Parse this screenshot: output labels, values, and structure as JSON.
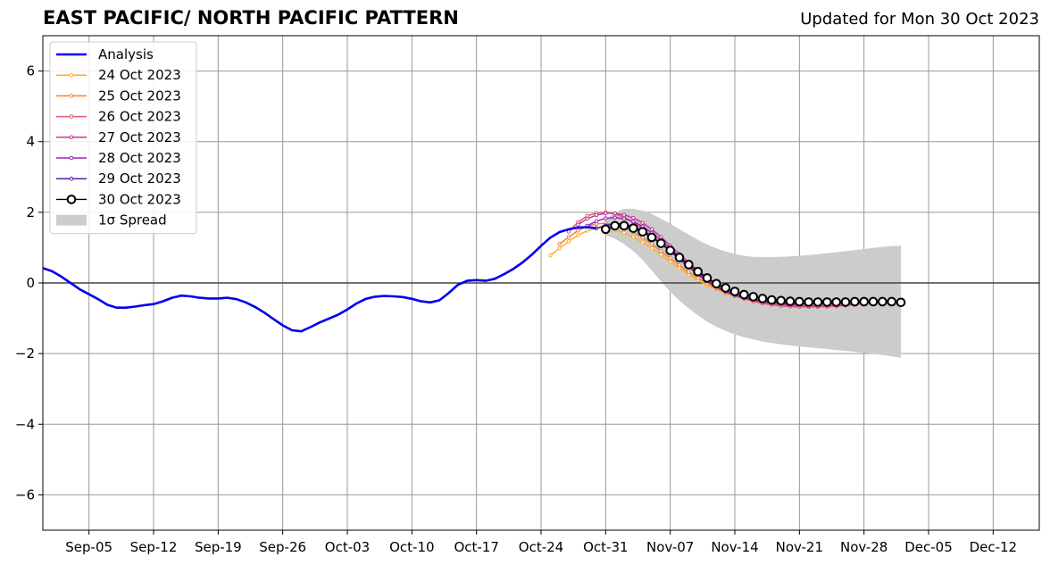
{
  "header": {
    "title": "EAST PACIFIC/ NORTH PACIFIC PATTERN",
    "updated": "Updated for Mon 30 Oct 2023"
  },
  "chart_data": {
    "type": "line",
    "title": "EAST PACIFIC/ NORTH PACIFIC PATTERN",
    "subtitle": "Updated for Mon 30 Oct 2023",
    "xlabel": "",
    "ylabel": "",
    "xlim": [
      "2023-08-31",
      "2023-12-17"
    ],
    "ylim": [
      -7,
      7
    ],
    "grid": true,
    "legend_position": "top-left",
    "x_ticks": [
      "Sep-05",
      "Sep-12",
      "Sep-19",
      "Sep-26",
      "Oct-03",
      "Oct-10",
      "Oct-17",
      "Oct-24",
      "Oct-31",
      "Nov-07",
      "Nov-14",
      "Nov-21",
      "Nov-28",
      "Dec-05",
      "Dec-12"
    ],
    "x_tick_dates": [
      "2023-09-05",
      "2023-09-12",
      "2023-09-19",
      "2023-09-26",
      "2023-10-03",
      "2023-10-10",
      "2023-10-17",
      "2023-10-24",
      "2023-10-31",
      "2023-11-07",
      "2023-11-14",
      "2023-11-21",
      "2023-11-28",
      "2023-12-05",
      "2023-12-12"
    ],
    "y_ticks": [
      6,
      4,
      2,
      0,
      -2,
      -4,
      -6
    ],
    "y_tick_labels": [
      "6",
      "4",
      "2",
      "0",
      "−2",
      "−4",
      "−6"
    ],
    "colors": {
      "analysis": "#0000ee",
      "spread": "#cccccc",
      "grid": "#999999",
      "zero_line": "#444444"
    },
    "analysis": {
      "name": "Analysis",
      "color": "#0000ee",
      "x": [
        "2023-08-31",
        "2023-09-01",
        "2023-09-02",
        "2023-09-03",
        "2023-09-04",
        "2023-09-05",
        "2023-09-06",
        "2023-09-07",
        "2023-09-08",
        "2023-09-09",
        "2023-09-10",
        "2023-09-11",
        "2023-09-12",
        "2023-09-13",
        "2023-09-14",
        "2023-09-15",
        "2023-09-16",
        "2023-09-17",
        "2023-09-18",
        "2023-09-19",
        "2023-09-20",
        "2023-09-21",
        "2023-09-22",
        "2023-09-23",
        "2023-09-24",
        "2023-09-25",
        "2023-09-26",
        "2023-09-27",
        "2023-09-28",
        "2023-09-29",
        "2023-09-30",
        "2023-10-01",
        "2023-10-02",
        "2023-10-03",
        "2023-10-04",
        "2023-10-05",
        "2023-10-06",
        "2023-10-07",
        "2023-10-08",
        "2023-10-09",
        "2023-10-10",
        "2023-10-11",
        "2023-10-12",
        "2023-10-13",
        "2023-10-14",
        "2023-10-15",
        "2023-10-16",
        "2023-10-17",
        "2023-10-18",
        "2023-10-19",
        "2023-10-20",
        "2023-10-21",
        "2023-10-22",
        "2023-10-23",
        "2023-10-24",
        "2023-10-25",
        "2023-10-26",
        "2023-10-27",
        "2023-10-28",
        "2023-10-29",
        "2023-10-30"
      ],
      "y": [
        0.42,
        0.33,
        0.18,
        0.0,
        -0.18,
        -0.32,
        -0.46,
        -0.62,
        -0.7,
        -0.7,
        -0.67,
        -0.63,
        -0.6,
        -0.52,
        -0.42,
        -0.36,
        -0.38,
        -0.42,
        -0.44,
        -0.44,
        -0.42,
        -0.46,
        -0.55,
        -0.68,
        -0.84,
        -1.02,
        -1.2,
        -1.34,
        -1.37,
        -1.25,
        -1.12,
        -1.01,
        -0.9,
        -0.75,
        -0.58,
        -0.45,
        -0.39,
        -0.37,
        -0.38,
        -0.4,
        -0.45,
        -0.52,
        -0.55,
        -0.49,
        -0.28,
        -0.05,
        0.06,
        0.08,
        0.06,
        0.12,
        0.25,
        0.4,
        0.58,
        0.8,
        1.05,
        1.28,
        1.44,
        1.52,
        1.57,
        1.58,
        1.55
      ]
    },
    "spread": {
      "name": "1σ Spread",
      "x": [
        "2023-10-31",
        "2023-11-01",
        "2023-11-02",
        "2023-11-03",
        "2023-11-04",
        "2023-11-05",
        "2023-11-06",
        "2023-11-07",
        "2023-11-08",
        "2023-11-09",
        "2023-11-10",
        "2023-11-11",
        "2023-11-12",
        "2023-11-13",
        "2023-11-14",
        "2023-11-15",
        "2023-11-16",
        "2023-11-17",
        "2023-11-18",
        "2023-11-19",
        "2023-11-20",
        "2023-11-21",
        "2023-11-22",
        "2023-11-23",
        "2023-11-24",
        "2023-11-25",
        "2023-11-26",
        "2023-11-27",
        "2023-11-28",
        "2023-11-29",
        "2023-11-30",
        "2023-12-01",
        "2023-12-02"
      ],
      "upper": [
        1.8,
        2.0,
        2.1,
        2.1,
        2.05,
        1.95,
        1.82,
        1.68,
        1.52,
        1.37,
        1.22,
        1.09,
        0.98,
        0.89,
        0.82,
        0.77,
        0.74,
        0.73,
        0.73,
        0.74,
        0.75,
        0.77,
        0.79,
        0.81,
        0.84,
        0.87,
        0.9,
        0.93,
        0.96,
        0.99,
        1.02,
        1.04,
        1.06
      ],
      "lower": [
        1.35,
        1.25,
        1.1,
        0.9,
        0.65,
        0.35,
        0.05,
        -0.25,
        -0.5,
        -0.72,
        -0.92,
        -1.1,
        -1.24,
        -1.36,
        -1.46,
        -1.54,
        -1.6,
        -1.66,
        -1.7,
        -1.74,
        -1.77,
        -1.8,
        -1.82,
        -1.85,
        -1.87,
        -1.9,
        -1.92,
        -1.95,
        -1.98,
        -2.01,
        -2.04,
        -2.08,
        -2.12
      ]
    },
    "forecasts": [
      {
        "name": "24 Oct 2023",
        "color": "#ffb020",
        "x": [
          "2023-10-25",
          "2023-10-26",
          "2023-10-27",
          "2023-10-28",
          "2023-10-29",
          "2023-10-30",
          "2023-10-31",
          "2023-11-01",
          "2023-11-02",
          "2023-11-03",
          "2023-11-04",
          "2023-11-05",
          "2023-11-06",
          "2023-11-07",
          "2023-11-08",
          "2023-11-09",
          "2023-11-10",
          "2023-11-11",
          "2023-11-12",
          "2023-11-13",
          "2023-11-14",
          "2023-11-15",
          "2023-11-16",
          "2023-11-17",
          "2023-11-18",
          "2023-11-19",
          "2023-11-20",
          "2023-11-21",
          "2023-11-22",
          "2023-11-23",
          "2023-11-24",
          "2023-11-25"
        ],
        "y": [
          0.78,
          0.98,
          1.18,
          1.35,
          1.48,
          1.55,
          1.55,
          1.5,
          1.42,
          1.3,
          1.15,
          0.98,
          0.8,
          0.6,
          0.42,
          0.24,
          0.08,
          -0.06,
          -0.18,
          -0.3,
          -0.38,
          -0.45,
          -0.5,
          -0.55,
          -0.58,
          -0.61,
          -0.63,
          -0.64,
          -0.65,
          -0.65,
          -0.64,
          -0.63
        ]
      },
      {
        "name": "25 Oct 2023",
        "color": "#f08040",
        "x": [
          "2023-10-26",
          "2023-10-27",
          "2023-10-28",
          "2023-10-29",
          "2023-10-30",
          "2023-10-31",
          "2023-11-01",
          "2023-11-02",
          "2023-11-03",
          "2023-11-04",
          "2023-11-05",
          "2023-11-06",
          "2023-11-07",
          "2023-11-08",
          "2023-11-09",
          "2023-11-10",
          "2023-11-11",
          "2023-11-12",
          "2023-11-13",
          "2023-11-14",
          "2023-11-15",
          "2023-11-16",
          "2023-11-17",
          "2023-11-18",
          "2023-11-19",
          "2023-11-20",
          "2023-11-21",
          "2023-11-22",
          "2023-11-23",
          "2023-11-24",
          "2023-11-25",
          "2023-11-26"
        ],
        "y": [
          1.1,
          1.3,
          1.48,
          1.6,
          1.67,
          1.69,
          1.65,
          1.56,
          1.44,
          1.28,
          1.1,
          0.9,
          0.7,
          0.5,
          0.31,
          0.14,
          -0.01,
          -0.15,
          -0.27,
          -0.37,
          -0.45,
          -0.52,
          -0.57,
          -0.61,
          -0.64,
          -0.66,
          -0.67,
          -0.68,
          -0.68,
          -0.67,
          -0.66,
          -0.64
        ]
      },
      {
        "name": "26 Oct 2023",
        "color": "#e05a70",
        "x": [
          "2023-10-27",
          "2023-10-28",
          "2023-10-29",
          "2023-10-30",
          "2023-10-31",
          "2023-11-01",
          "2023-11-02",
          "2023-11-03",
          "2023-11-04",
          "2023-11-05",
          "2023-11-06",
          "2023-11-07",
          "2023-11-08",
          "2023-11-09",
          "2023-11-10",
          "2023-11-11",
          "2023-11-12",
          "2023-11-13",
          "2023-11-14",
          "2023-11-15",
          "2023-11-16",
          "2023-11-17",
          "2023-11-18",
          "2023-11-19",
          "2023-11-20",
          "2023-11-21",
          "2023-11-22",
          "2023-11-23",
          "2023-11-24",
          "2023-11-25",
          "2023-11-26",
          "2023-11-27"
        ],
        "y": [
          1.45,
          1.72,
          1.9,
          1.98,
          2.0,
          1.96,
          1.86,
          1.72,
          1.54,
          1.34,
          1.12,
          0.9,
          0.68,
          0.46,
          0.26,
          0.08,
          -0.08,
          -0.22,
          -0.34,
          -0.44,
          -0.52,
          -0.58,
          -0.62,
          -0.65,
          -0.67,
          -0.68,
          -0.68,
          -0.68,
          -0.67,
          -0.66,
          -0.64,
          -0.62
        ]
      },
      {
        "name": "27 Oct 2023",
        "color": "#c03a9e",
        "x": [
          "2023-10-28",
          "2023-10-29",
          "2023-10-30",
          "2023-10-31",
          "2023-11-01",
          "2023-11-02",
          "2023-11-03",
          "2023-11-04",
          "2023-11-05",
          "2023-11-06",
          "2023-11-07",
          "2023-11-08",
          "2023-11-09",
          "2023-11-10",
          "2023-11-11",
          "2023-11-12",
          "2023-11-13",
          "2023-11-14",
          "2023-11-15",
          "2023-11-16",
          "2023-11-17",
          "2023-11-18",
          "2023-11-19",
          "2023-11-20",
          "2023-11-21",
          "2023-11-22",
          "2023-11-23",
          "2023-11-24",
          "2023-11-25",
          "2023-11-26",
          "2023-11-27",
          "2023-11-28"
        ],
        "y": [
          1.65,
          1.82,
          1.92,
          1.97,
          1.97,
          1.93,
          1.84,
          1.7,
          1.52,
          1.3,
          1.06,
          0.82,
          0.58,
          0.36,
          0.16,
          -0.02,
          -0.17,
          -0.3,
          -0.4,
          -0.48,
          -0.54,
          -0.58,
          -0.61,
          -0.63,
          -0.64,
          -0.65,
          -0.65,
          -0.64,
          -0.63,
          -0.62,
          -0.6,
          -0.58
        ]
      },
      {
        "name": "28 Oct 2023",
        "color": "#9a28b0",
        "x": [
          "2023-10-29",
          "2023-10-30",
          "2023-10-31",
          "2023-11-01",
          "2023-11-02",
          "2023-11-03",
          "2023-11-04",
          "2023-11-05",
          "2023-11-06",
          "2023-11-07",
          "2023-11-08",
          "2023-11-09",
          "2023-11-10",
          "2023-11-11",
          "2023-11-12",
          "2023-11-13",
          "2023-11-14",
          "2023-11-15",
          "2023-11-16",
          "2023-11-17",
          "2023-11-18",
          "2023-11-19",
          "2023-11-20",
          "2023-11-21",
          "2023-11-22",
          "2023-11-23",
          "2023-11-24",
          "2023-11-25",
          "2023-11-26",
          "2023-11-27",
          "2023-11-28",
          "2023-11-29"
        ],
        "y": [
          1.62,
          1.75,
          1.83,
          1.85,
          1.82,
          1.74,
          1.6,
          1.42,
          1.21,
          0.98,
          0.75,
          0.52,
          0.31,
          0.12,
          -0.05,
          -0.19,
          -0.31,
          -0.4,
          -0.47,
          -0.52,
          -0.56,
          -0.58,
          -0.6,
          -0.6,
          -0.6,
          -0.6,
          -0.59,
          -0.58,
          -0.57,
          -0.56,
          -0.55,
          -0.54
        ]
      },
      {
        "name": "29 Oct 2023",
        "color": "#5a1ab0",
        "x": [
          "2023-10-30",
          "2023-10-31",
          "2023-11-01",
          "2023-11-02",
          "2023-11-03",
          "2023-11-04",
          "2023-11-05",
          "2023-11-06",
          "2023-11-07",
          "2023-11-08",
          "2023-11-09",
          "2023-11-10",
          "2023-11-11",
          "2023-11-12",
          "2023-11-13",
          "2023-11-14",
          "2023-11-15",
          "2023-11-16",
          "2023-11-17",
          "2023-11-18",
          "2023-11-19",
          "2023-11-20",
          "2023-11-21",
          "2023-11-22",
          "2023-11-23",
          "2023-11-24",
          "2023-11-25",
          "2023-11-26",
          "2023-11-27",
          "2023-11-28",
          "2023-11-29",
          "2023-11-30"
        ],
        "y": [
          1.55,
          1.63,
          1.68,
          1.67,
          1.6,
          1.48,
          1.32,
          1.12,
          0.9,
          0.67,
          0.45,
          0.24,
          0.05,
          -0.11,
          -0.24,
          -0.34,
          -0.42,
          -0.47,
          -0.51,
          -0.54,
          -0.55,
          -0.56,
          -0.56,
          -0.56,
          -0.55,
          -0.55,
          -0.54,
          -0.54,
          -0.53,
          -0.53,
          -0.52,
          -0.52
        ]
      },
      {
        "name": "30 Oct 2023",
        "color": "#000000",
        "marker": "open-circle",
        "x": [
          "2023-10-31",
          "2023-11-01",
          "2023-11-02",
          "2023-11-03",
          "2023-11-04",
          "2023-11-05",
          "2023-11-06",
          "2023-11-07",
          "2023-11-08",
          "2023-11-09",
          "2023-11-10",
          "2023-11-11",
          "2023-11-12",
          "2023-11-13",
          "2023-11-14",
          "2023-11-15",
          "2023-11-16",
          "2023-11-17",
          "2023-11-18",
          "2023-11-19",
          "2023-11-20",
          "2023-11-21",
          "2023-11-22",
          "2023-11-23",
          "2023-11-24",
          "2023-11-25",
          "2023-11-26",
          "2023-11-27",
          "2023-11-28",
          "2023-11-29",
          "2023-11-30",
          "2023-12-01",
          "2023-12-02"
        ],
        "y": [
          1.52,
          1.62,
          1.62,
          1.55,
          1.45,
          1.29,
          1.12,
          0.92,
          0.72,
          0.52,
          0.32,
          0.14,
          -0.02,
          -0.14,
          -0.24,
          -0.33,
          -0.39,
          -0.44,
          -0.48,
          -0.5,
          -0.52,
          -0.53,
          -0.54,
          -0.54,
          -0.54,
          -0.54,
          -0.54,
          -0.53,
          -0.53,
          -0.53,
          -0.53,
          -0.53,
          -0.55
        ]
      }
    ]
  }
}
